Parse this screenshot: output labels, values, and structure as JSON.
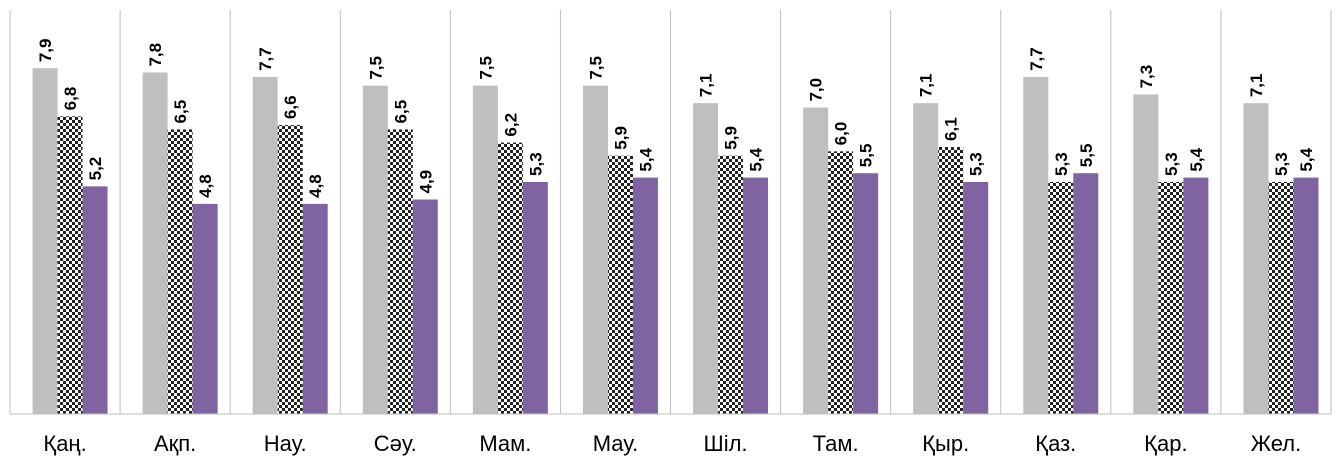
{
  "chart_data": {
    "type": "bar",
    "categories": [
      "Қаң.",
      "Ақп.",
      "Нау.",
      "Сәу.",
      "Мам.",
      "Мау.",
      "Шіл.",
      "Там.",
      "Қыр.",
      "Қаз.",
      "Қар.",
      "Жел."
    ],
    "series": [
      {
        "values": [
          7.9,
          7.8,
          7.7,
          7.5,
          7.5,
          7.5,
          7.1,
          7.0,
          7.1,
          7.7,
          7.3,
          7.1
        ],
        "labels": [
          "7,9",
          "7,8",
          "7,7",
          "7,5",
          "7,5",
          "7,5",
          "7,1",
          "7,0",
          "7,1",
          "7,7",
          "7,3",
          "7,1"
        ],
        "color": "#bfbfbf",
        "pattern": "solid"
      },
      {
        "values": [
          6.8,
          6.5,
          6.6,
          6.5,
          6.2,
          5.9,
          5.9,
          6.0,
          6.1,
          5.3,
          5.3,
          5.3
        ],
        "labels": [
          "6,8",
          "6,5",
          "6,6",
          "6,5",
          "6,2",
          "5,9",
          "5,9",
          "6,0",
          "6,1",
          "5,3",
          "5,3",
          "5,3"
        ],
        "color": "#000000",
        "pattern": "checkered"
      },
      {
        "values": [
          5.2,
          4.8,
          4.8,
          4.9,
          5.3,
          5.4,
          5.4,
          5.5,
          5.3,
          5.5,
          5.4,
          5.4
        ],
        "labels": [
          "5,2",
          "4,8",
          "4,8",
          "4,9",
          "5,3",
          "5,4",
          "5,4",
          "5,5",
          "5,3",
          "5,5",
          "5,4",
          "5,4"
        ],
        "color": "#8064a2",
        "pattern": "solid"
      }
    ],
    "ylim": [
      0,
      9.0
    ],
    "grid": false,
    "legend": false,
    "category_separators": true,
    "axis_color": "#bfbfbf"
  }
}
